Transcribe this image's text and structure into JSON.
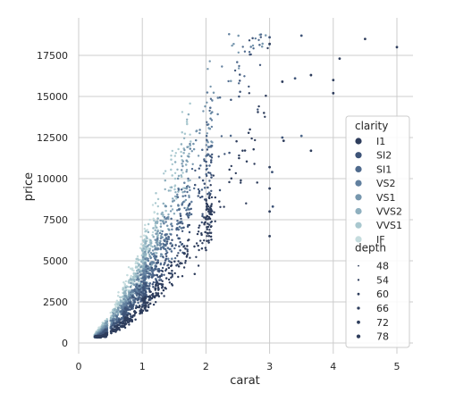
{
  "chart_data": {
    "type": "scatter",
    "title": "",
    "xlabel": "carat",
    "ylabel": "price",
    "xlim": [
      -0.1,
      5.2
    ],
    "ylim": [
      -900,
      19700
    ],
    "x_ticks": [
      0,
      1,
      2,
      3,
      4,
      5
    ],
    "y_ticks": [
      0,
      2500,
      5000,
      7500,
      10000,
      12500,
      15000,
      17500
    ],
    "grid": true,
    "legend_position": "right",
    "hue": {
      "title": "clarity",
      "levels": [
        {
          "name": "I1",
          "color": "#2e3d5c"
        },
        {
          "name": "SI2",
          "color": "#3e5478"
        },
        {
          "name": "SI1",
          "color": "#4f6a8d"
        },
        {
          "name": "VS2",
          "color": "#62809f"
        },
        {
          "name": "VS1",
          "color": "#7797ae"
        },
        {
          "name": "VVS2",
          "color": "#8fb0bf"
        },
        {
          "name": "VVS1",
          "color": "#a9c8cf"
        },
        {
          "name": "IF",
          "color": "#c5dcde"
        }
      ]
    },
    "size": {
      "title": "depth",
      "levels": [
        48,
        54,
        60,
        66,
        72,
        78
      ]
    },
    "outliers": [
      {
        "x": 4.5,
        "y": 18500,
        "clarity": "I1"
      },
      {
        "x": 5.0,
        "y": 18000,
        "clarity": "I1"
      },
      {
        "x": 4.1,
        "y": 17300,
        "clarity": "I1"
      },
      {
        "x": 3.5,
        "y": 18700,
        "clarity": "SI2"
      },
      {
        "x": 3.0,
        "y": 18600,
        "clarity": "SI2"
      },
      {
        "x": 3.0,
        "y": 18200,
        "clarity": "I1"
      },
      {
        "x": 3.4,
        "y": 16100,
        "clarity": "SI2"
      },
      {
        "x": 3.2,
        "y": 15900,
        "clarity": "I1"
      },
      {
        "x": 3.65,
        "y": 16300,
        "clarity": "I1"
      },
      {
        "x": 4.0,
        "y": 16000,
        "clarity": "I1"
      },
      {
        "x": 4.0,
        "y": 15200,
        "clarity": "I1"
      },
      {
        "x": 3.2,
        "y": 12500,
        "clarity": "SI2"
      },
      {
        "x": 3.22,
        "y": 12300,
        "clarity": "I1"
      },
      {
        "x": 3.5,
        "y": 12600,
        "clarity": "SI1"
      },
      {
        "x": 3.65,
        "y": 11700,
        "clarity": "I1"
      },
      {
        "x": 3.0,
        "y": 10700,
        "clarity": "I1"
      },
      {
        "x": 3.04,
        "y": 10400,
        "clarity": "SI2"
      },
      {
        "x": 3.0,
        "y": 9400,
        "clarity": "I1"
      },
      {
        "x": 3.0,
        "y": 8000,
        "clarity": "I1"
      },
      {
        "x": 3.0,
        "y": 6500,
        "clarity": "I1"
      },
      {
        "x": 3.05,
        "y": 8300,
        "clarity": "SI2"
      }
    ]
  }
}
